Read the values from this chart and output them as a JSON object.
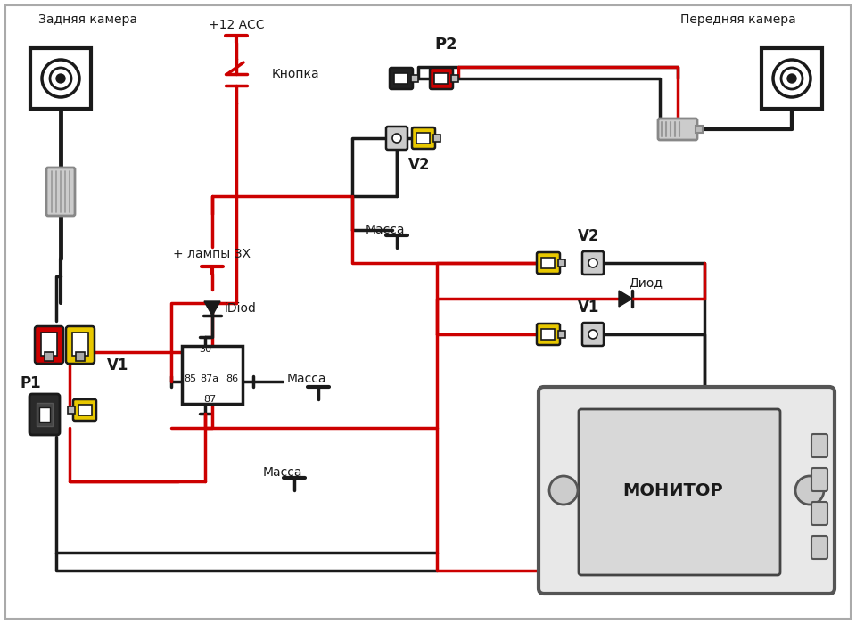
{
  "bg_color": "#ffffff",
  "line_black": "#1a1a1a",
  "line_red": "#cc0000",
  "connector_yellow": "#e8c800",
  "connector_gray": "#aaaaaa",
  "labels": {
    "rear_cam": "Задняя камера",
    "front_cam": "Передняя камера",
    "button": "Кнопка",
    "p1": "P1",
    "p2": "P2",
    "v1": "V1",
    "v2_top": "V2",
    "v2_right": "V2",
    "v1_right": "V1",
    "lamp_plus": "+ лампы ЗХ",
    "idiod": "iDiod",
    "massa1": "Масса",
    "massa2": "Масса",
    "relay_30": "30",
    "relay_85": "85",
    "relay_86": "86",
    "relay_87a": "87а",
    "relay_87": "87",
    "diod": "Диод",
    "monitor": "МОНИТОР",
    "plus12acc": "+12 АСС"
  }
}
